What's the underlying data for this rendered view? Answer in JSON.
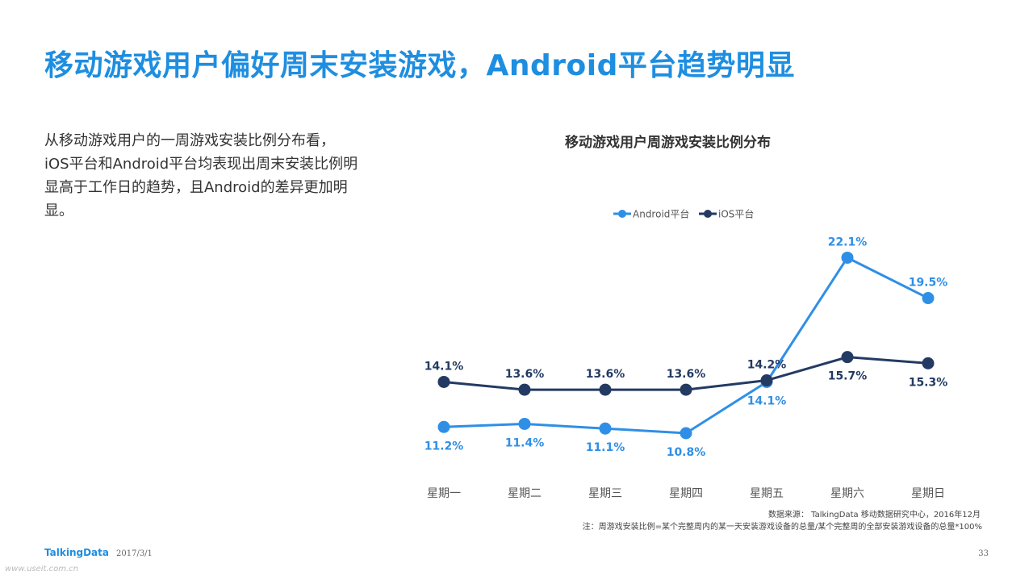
{
  "header": {
    "title": "移动游戏用户偏好周末安装游戏，Android平台趋势明显"
  },
  "description": "从移动游戏用户的一周游戏安装比例分布看，iOS平台和Android平台均表现出周末安装比例明显高于工作日的趋势，且Android的差异更加明显。",
  "colors": {
    "accent": "#1e8ee0",
    "android": "#2f8fe6",
    "ios": "#233a63"
  },
  "chart_data": {
    "type": "line",
    "title": "移动游戏用户周游戏安装比例分布",
    "categories": [
      "星期一",
      "星期二",
      "星期三",
      "星期四",
      "星期五",
      "星期六",
      "星期日"
    ],
    "series": [
      {
        "name": "Android平台",
        "values": [
          11.2,
          11.4,
          11.1,
          10.8,
          14.1,
          22.1,
          19.5
        ],
        "labels": [
          "11.2%",
          "11.4%",
          "11.1%",
          "10.8%",
          "14.1%",
          "22.1%",
          "19.5%"
        ]
      },
      {
        "name": "iOS平台",
        "values": [
          14.1,
          13.6,
          13.6,
          13.6,
          14.2,
          15.7,
          15.3
        ],
        "labels": [
          "14.1%",
          "13.6%",
          "13.6%",
          "13.6%",
          "14.2%",
          "15.7%",
          "15.3%"
        ]
      }
    ],
    "xlabel": "",
    "ylabel": "",
    "legend": "top-center",
    "grid": false
  },
  "footer": {
    "source": "数据来源： TalkingData 移动数据研究中心，2016年12月",
    "note": "注：周游戏安装比例=某个完整周内的某一天安装游戏设备的总量/某个完整周的全部安装游戏设备的总量*100%",
    "logo": "TalkingData",
    "date": "2017/3/1",
    "page": "33",
    "watermark": "www.useit.com.cn"
  }
}
